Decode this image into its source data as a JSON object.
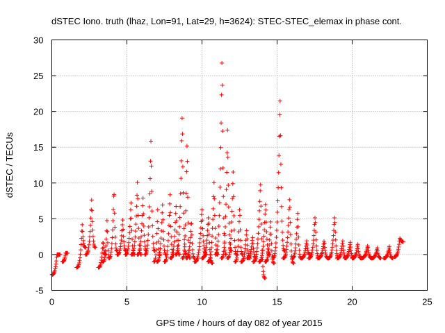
{
  "chart_data": {
    "type": "scatter",
    "title": "dSTEC Iono. truth (lhaz, Lon=91, Lat=29, h=3624): STEC-STEC_elemax in phase cont.",
    "xlabel": "GPS time / hours of day 082 of year 2015",
    "ylabel": "dSTEC  / TECUs",
    "xlim": [
      0,
      25
    ],
    "ylim": [
      -5,
      30
    ],
    "x_ticks": [
      0,
      5,
      10,
      15,
      20,
      25
    ],
    "y_ticks": [
      -5,
      0,
      5,
      10,
      15,
      20,
      25,
      30
    ],
    "x_tick_labels": [
      "0",
      "5",
      "10",
      "15",
      "20",
      "25"
    ],
    "y_tick_labels": [
      "-5",
      "0",
      "5",
      "10",
      "15",
      "20",
      "25",
      "30"
    ],
    "grid": true,
    "marker": "+",
    "series_color": "#ff0000",
    "series": [
      {
        "arcs": [
          {
            "x0": 0.0,
            "x1": 0.55,
            "y0": -2.8,
            "peak": 0.0,
            "end": 0.0
          },
          {
            "x0": 0.7,
            "x1": 1.05,
            "y0": -1.0,
            "peak": 0.2,
            "end": 0.2
          },
          {
            "x0": 1.65,
            "x1": 2.25,
            "y0": -1.8,
            "peak": 4.3,
            "end": 1.0
          },
          {
            "x0": 2.25,
            "x1": 2.9,
            "y0": 0.0,
            "peak": 7.8,
            "end": 1.0
          },
          {
            "x0": 3.1,
            "x1": 3.6,
            "y0": -1.8,
            "peak": 2.0,
            "end": 0.0
          },
          {
            "x0": 3.4,
            "x1": 3.85,
            "y0": -1.0,
            "peak": 5.0,
            "end": -0.5
          },
          {
            "x0": 3.8,
            "x1": 4.35,
            "y0": -0.5,
            "peak": 9.5,
            "end": 0.5
          },
          {
            "x0": 4.35,
            "x1": 4.95,
            "y0": 0.0,
            "peak": 5.0,
            "end": 0.5
          },
          {
            "x0": 4.9,
            "x1": 5.5,
            "y0": 0.0,
            "peak": 7.5,
            "end": 0.0
          },
          {
            "x0": 5.3,
            "x1": 5.95,
            "y0": 0.0,
            "peak": 10.3,
            "end": 0.0
          },
          {
            "x0": 5.7,
            "x1": 6.3,
            "y0": 0.0,
            "peak": 8.2,
            "end": 0.5
          },
          {
            "x0": 6.2,
            "x1": 6.85,
            "y0": 0.0,
            "peak": 16.2,
            "end": 0.5
          },
          {
            "x0": 6.8,
            "x1": 7.2,
            "y0": -1.0,
            "peak": 6.5,
            "end": 0.0
          },
          {
            "x0": 7.0,
            "x1": 7.6,
            "y0": -1.0,
            "peak": 7.2,
            "end": 0.0
          },
          {
            "x0": 7.5,
            "x1": 8.1,
            "y0": -1.0,
            "peak": 8.7,
            "end": 0.0
          },
          {
            "x0": 7.9,
            "x1": 8.5,
            "y0": -0.5,
            "peak": 7.0,
            "end": 0.0
          },
          {
            "x0": 8.25,
            "x1": 8.95,
            "y0": 0.0,
            "peak": 20.3,
            "end": 0.0
          },
          {
            "x0": 8.7,
            "x1": 9.2,
            "y0": -0.5,
            "peak": 16.8,
            "end": -0.5
          },
          {
            "x0": 8.95,
            "x1": 9.5,
            "y0": -0.5,
            "peak": 5.0,
            "end": -0.5
          },
          {
            "x0": 9.5,
            "x1": 10.3,
            "y0": -1.0,
            "peak": 6.5,
            "end": 0.0
          },
          {
            "x0": 10.0,
            "x1": 10.7,
            "y0": -0.5,
            "peak": 5.5,
            "end": -1.2
          },
          {
            "x0": 10.4,
            "x1": 11.05,
            "y0": -1.0,
            "peak": 10.3,
            "end": 0.0
          },
          {
            "x0": 10.9,
            "x1": 11.6,
            "y0": 0.0,
            "peak": 28.5,
            "end": 0.0
          },
          {
            "x0": 11.3,
            "x1": 11.95,
            "y0": -0.5,
            "peak": 17.8,
            "end": 0.5
          },
          {
            "x0": 11.7,
            "x1": 12.3,
            "y0": -0.5,
            "peak": 12.0,
            "end": 0.0
          },
          {
            "x0": 12.2,
            "x1": 12.7,
            "y0": -1.0,
            "peak": 7.0,
            "end": 0.0
          },
          {
            "x0": 12.6,
            "x1": 13.2,
            "y0": -1.0,
            "peak": 3.5,
            "end": -0.5
          },
          {
            "x0": 13.0,
            "x1": 13.6,
            "y0": -0.5,
            "peak": 2.5,
            "end": -0.5
          },
          {
            "x0": 13.4,
            "x1": 14.2,
            "y0": -1.0,
            "peak": 10.3,
            "end": -3.3
          },
          {
            "x0": 13.8,
            "x1": 14.5,
            "y0": -1.0,
            "peak": 7.5,
            "end": 0.0
          },
          {
            "x0": 14.2,
            "x1": 14.8,
            "y0": -1.0,
            "peak": 4.8,
            "end": -1.2
          },
          {
            "x0": 14.7,
            "x1": 15.5,
            "y0": -0.5,
            "peak": 22.3,
            "end": 0.5
          },
          {
            "x0": 15.4,
            "x1": 16.1,
            "y0": -0.5,
            "peak": 8.2,
            "end": -1.2
          },
          {
            "x0": 16.0,
            "x1": 16.6,
            "y0": -0.5,
            "peak": 6.0,
            "end": -0.5
          },
          {
            "x0": 16.6,
            "x1": 17.2,
            "y0": -0.5,
            "peak": 2.0,
            "end": 0.0
          },
          {
            "x0": 17.1,
            "x1": 17.8,
            "y0": -0.5,
            "peak": 5.5,
            "end": -0.5
          },
          {
            "x0": 17.7,
            "x1": 18.4,
            "y0": -0.5,
            "peak": 2.0,
            "end": -0.5
          },
          {
            "x0": 18.4,
            "x1": 19.1,
            "y0": -0.5,
            "peak": 5.5,
            "end": -0.5
          },
          {
            "x0": 19.0,
            "x1": 19.6,
            "y0": -0.5,
            "peak": 2.0,
            "end": -0.5
          },
          {
            "x0": 19.5,
            "x1": 20.1,
            "y0": -0.5,
            "peak": 1.8,
            "end": -0.5
          },
          {
            "x0": 20.0,
            "x1": 20.6,
            "y0": -0.5,
            "peak": 1.5,
            "end": -0.5
          },
          {
            "x0": 20.6,
            "x1": 21.3,
            "y0": -0.5,
            "peak": 1.3,
            "end": -0.5
          },
          {
            "x0": 21.3,
            "x1": 21.9,
            "y0": -0.5,
            "peak": 1.0,
            "end": -0.5
          },
          {
            "x0": 22.1,
            "x1": 22.7,
            "y0": -0.5,
            "peak": 1.2,
            "end": -0.5
          },
          {
            "x0": 22.8,
            "x1": 23.4,
            "y0": -0.3,
            "peak": 2.3,
            "end": 1.8
          }
        ]
      }
    ]
  }
}
